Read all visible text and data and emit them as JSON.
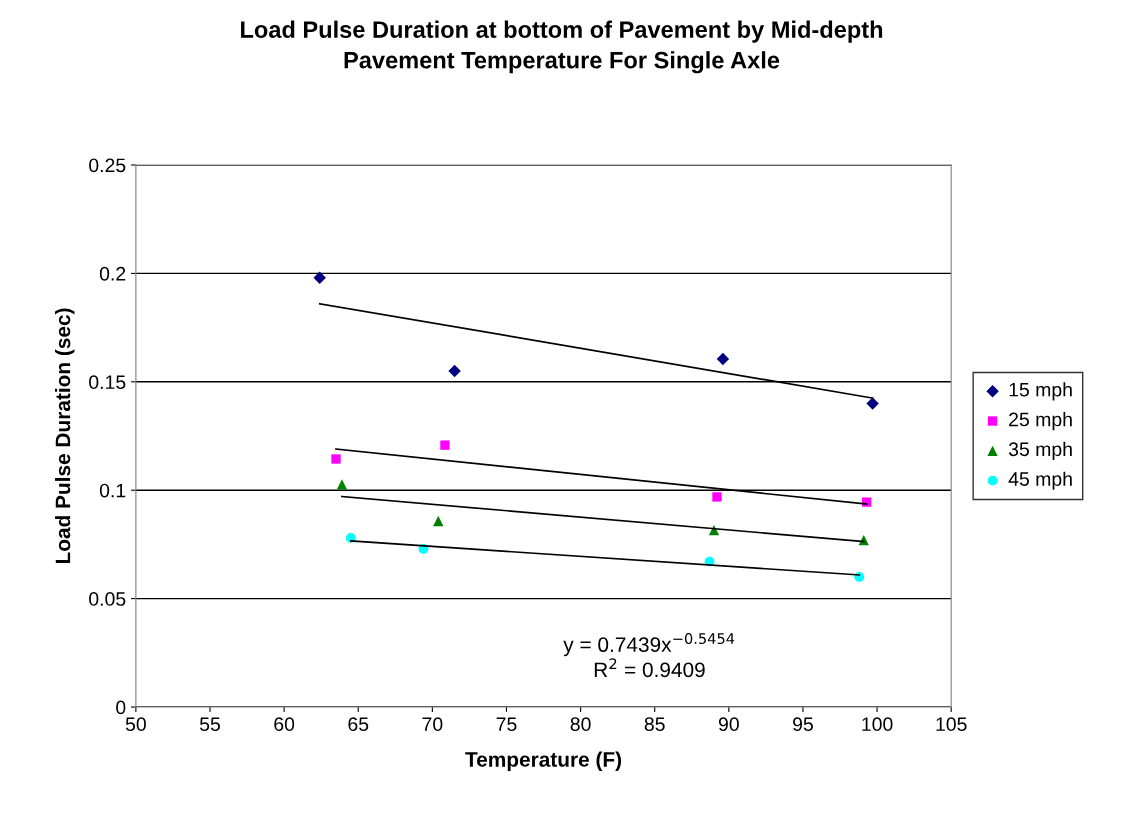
{
  "chart_data": {
    "type": "scatter",
    "title": "Load Pulse Duration at bottom of Pavement by Mid-depth\nPavement Temperature For Single Axle",
    "xlabel": "Temperature (F)",
    "ylabel": "Load Pulse Duration (sec)",
    "xlim": [
      50,
      105
    ],
    "xticks": [
      50,
      55,
      60,
      65,
      70,
      75,
      80,
      85,
      90,
      95,
      100,
      105
    ],
    "ylim": [
      0,
      0.25
    ],
    "yticks": [
      0,
      0.05,
      0.1,
      0.15,
      0.2,
      0.25
    ],
    "grid": "y",
    "legend": "right",
    "series": [
      {
        "name": "15 mph",
        "color": "#000080",
        "marker": "diamond",
        "x": [
          62.4,
          71.5,
          89.6,
          99.7
        ],
        "values": [
          0.198,
          0.155,
          0.1605,
          0.14
        ]
      },
      {
        "name": "25 mph",
        "color": "#ff00ff",
        "marker": "square",
        "x": [
          63.5,
          70.85,
          89.2,
          99.3
        ],
        "values": [
          0.1144,
          0.1208,
          0.0969,
          0.0945
        ]
      },
      {
        "name": "35 mph",
        "color": "#008000",
        "marker": "triangle",
        "x": [
          63.9,
          70.4,
          89.0,
          99.1
        ],
        "values": [
          0.1027,
          0.0858,
          0.0816,
          0.077
        ]
      },
      {
        "name": "45 mph",
        "color": "#00ffff",
        "marker": "circle",
        "x": [
          64.5,
          69.4,
          88.7,
          98.8
        ],
        "values": [
          0.078,
          0.0729,
          0.0671,
          0.06
        ]
      },
      {
        "type": "line",
        "color": "#000000",
        "marker": "none",
        "line_style": "solid",
        "x": [
          62.4,
          99.7
        ],
        "values": [
          0.186,
          0.1425
        ]
      },
      {
        "type": "line",
        "color": "#000000",
        "marker": "none",
        "line_style": "solid",
        "x": [
          63.5,
          99.3
        ],
        "values": [
          0.119,
          0.0936
        ]
      },
      {
        "type": "line",
        "color": "#000000",
        "marker": "none",
        "line_style": "solid",
        "x": [
          63.9,
          99.1
        ],
        "values": [
          0.0971,
          0.0763
        ]
      },
      {
        "type": "line",
        "color": "#000000",
        "marker": "none",
        "line_style": "solid",
        "x": [
          64.5,
          98.8
        ],
        "values": [
          0.0766,
          0.0609
        ]
      }
    ],
    "annotations": [
      "y = 0.7439x$^{−0.5454}$",
      "R$^{2}$ = 0.9409"
    ]
  }
}
